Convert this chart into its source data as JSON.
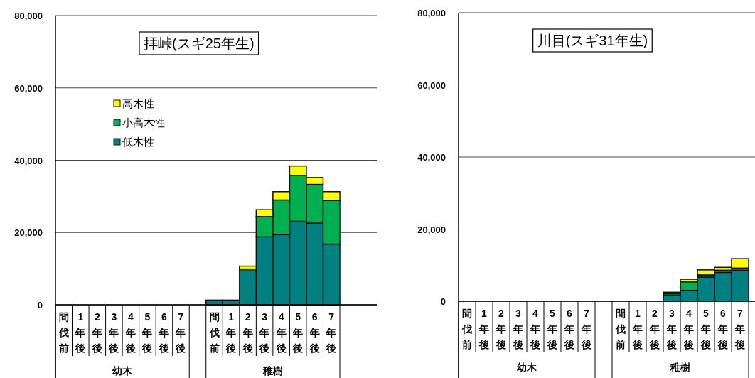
{
  "chart_data": [
    {
      "type": "bar",
      "stacked": true,
      "title": "拝峠(スギ25年生)",
      "categories": [
        "間伐前",
        "1年後",
        "2年後",
        "3年後",
        "4年後",
        "5年後",
        "6年後",
        "7年後",
        null,
        "間伐前",
        "1年後",
        "2年後",
        "3年後",
        "4年後",
        "5年後",
        "6年後",
        "7年後"
      ],
      "annotations": [
        "幼木",
        "稚樹"
      ],
      "series": [
        {
          "name": "低木性",
          "color": "#008080",
          "values": [
            0,
            0,
            0,
            0,
            0,
            0,
            null,
            null,
            null,
            1300,
            1300,
            9400,
            18800,
            19400,
            23100,
            22600,
            16800
          ]
        },
        {
          "name": "小高木性",
          "color": "#00b050",
          "values": [
            0,
            0,
            0,
            0,
            0,
            0,
            0,
            0,
            null,
            0,
            0,
            500,
            5600,
            9600,
            12700,
            10700,
            12100
          ]
        },
        {
          "name": "高木性",
          "color": "#ffff00",
          "values": [
            0,
            0,
            0,
            0,
            0,
            0,
            0,
            0,
            null,
            0,
            0,
            800,
            1900,
            2300,
            2600,
            1900,
            2400
          ]
        }
      ],
      "ylim": [
        0,
        80000
      ],
      "yticks": [
        0,
        {
          "value": 20000,
          "label": "20,000"
        },
        {
          "value": 40000,
          "label": "40,000"
        },
        {
          "value": 60000,
          "label": "60,000"
        },
        {
          "value": 80000,
          "label": "80,000"
        }
      ],
      "grid": "y",
      "legend": "top left"
    },
    {
      "type": "bar",
      "stacked": true,
      "title": "川目(スギ31年生)",
      "categories": [
        "間伐前",
        "1年後",
        "2年後",
        "3年後",
        "4年後",
        "5年後",
        "6年後",
        "7年後",
        null,
        "間伐前",
        "1年後",
        "2年後",
        "3年後",
        "4年後",
        "5年後",
        "6年後",
        "7年後"
      ],
      "annotations": [
        "幼木",
        "稚樹"
      ],
      "series": [
        {
          "color": "#008080",
          "values": [
            0,
            0,
            0,
            0,
            0,
            0,
            null,
            null,
            null,
            0,
            0,
            0,
            1700,
            3000,
            6700,
            8000,
            8600
          ]
        },
        {
          "color": "#00b050",
          "values": [
            0,
            0,
            0,
            0,
            0,
            0,
            0,
            0,
            null,
            0,
            0,
            0,
            400,
            2400,
            600,
            600,
            600
          ]
        },
        {
          "color": "#ffff00",
          "values": [
            0,
            0,
            0,
            0,
            0,
            0,
            0,
            0,
            null,
            0,
            0,
            0,
            400,
            700,
            1400,
            800,
            2600
          ]
        }
      ],
      "ylim": [
        0,
        80000
      ],
      "yticks": [
        0,
        {
          "value": 20000,
          "label": "20,000"
        },
        {
          "value": 40000,
          "label": "40,000"
        },
        {
          "value": 60000,
          "label": "60,000"
        },
        {
          "value": 80000,
          "label": "80,000"
        }
      ],
      "grid": "y"
    }
  ]
}
